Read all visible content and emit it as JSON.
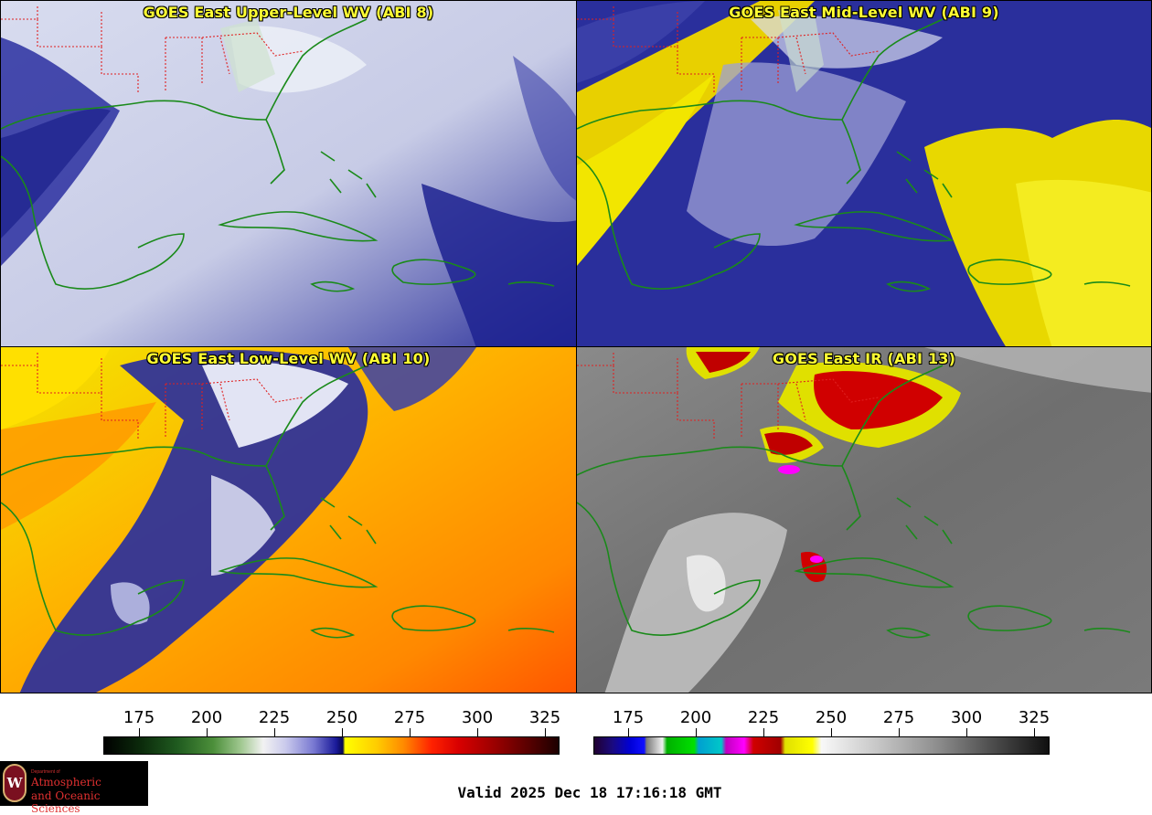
{
  "panels": [
    {
      "title": "GOES East Upper-Level WV (ABI 8)",
      "palette": "upper"
    },
    {
      "title": "GOES East Mid-Level WV (ABI 9)",
      "palette": "mid"
    },
    {
      "title": "GOES East Low-Level WV (ABI 10)",
      "palette": "low"
    },
    {
      "title": "GOES East IR (ABI 13)",
      "palette": "ir"
    }
  ],
  "colorbar_wv": {
    "ticks": [
      "175",
      "200",
      "225",
      "250",
      "275",
      "300",
      "325"
    ]
  },
  "colorbar_ir": {
    "ticks": [
      "175",
      "200",
      "225",
      "250",
      "275",
      "300",
      "325"
    ]
  },
  "logo": {
    "seal": "W",
    "dept": "Department of",
    "line1": "Atmospheric",
    "line2": "and Oceanic Sciences"
  },
  "footer": {
    "valid": "Valid 2025 Dec 18 17:16:18 GMT"
  },
  "colors": {
    "coast": "#1a8a1a",
    "state_border": "#e02020",
    "title": "#ffff33"
  }
}
